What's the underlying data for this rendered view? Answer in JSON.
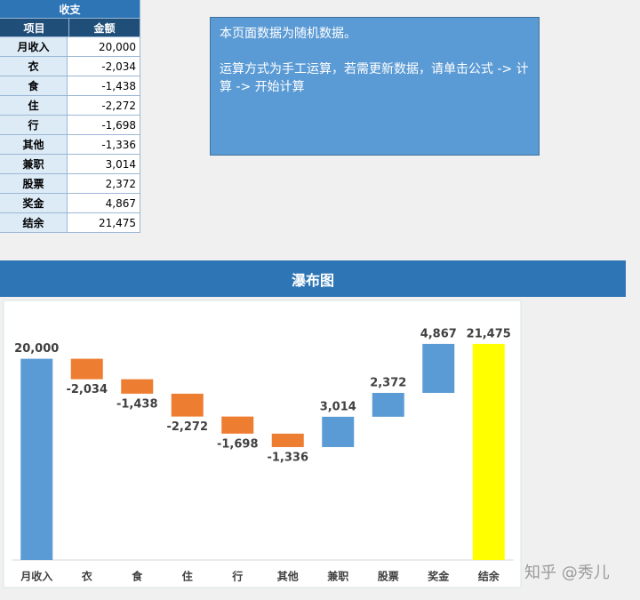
{
  "table": {
    "title": "收支",
    "header": [
      "项目",
      "金额"
    ],
    "rows": [
      [
        "月收入",
        "20,000"
      ],
      [
        "衣",
        "-2,034"
      ],
      [
        "食",
        "-1,438"
      ],
      [
        "住",
        "-2,272"
      ],
      [
        "行",
        "-1,698"
      ],
      [
        "其他",
        "-1,336"
      ],
      [
        "兼职",
        "3,014"
      ],
      [
        "股票",
        "2,372"
      ],
      [
        "奖金",
        "4,867"
      ],
      [
        "结余",
        "21,475"
      ]
    ]
  },
  "note": {
    "paragraphs": [
      "本页面数据为随机数据。",
      "运算方式为手工运算，若需更新数据，请单击公式 -> 计算 -> 开始计算"
    ]
  },
  "watermark": "知乎 @秀儿",
  "chart_data": {
    "type": "waterfall",
    "title": "瀑布图",
    "categories": [
      "月收入",
      "衣",
      "食",
      "住",
      "行",
      "其他",
      "兼职",
      "股票",
      "奖金",
      "结余"
    ],
    "values": [
      20000,
      -2034,
      -1438,
      -2272,
      -1698,
      -1336,
      3014,
      2372,
      4867,
      21475
    ],
    "value_labels": [
      "20,000",
      "-2,034",
      "-1,438",
      "-2,272",
      "-1,698",
      "-1,336",
      "3,014",
      "2,372",
      "4,867",
      "21,475"
    ],
    "colors": [
      "#5b9bd5",
      "#ed7d31",
      "#ed7d31",
      "#ed7d31",
      "#ed7d31",
      "#ed7d31",
      "#5b9bd5",
      "#5b9bd5",
      "#5b9bd5",
      "#ffff00"
    ],
    "ylim": [
      0,
      25000
    ]
  }
}
